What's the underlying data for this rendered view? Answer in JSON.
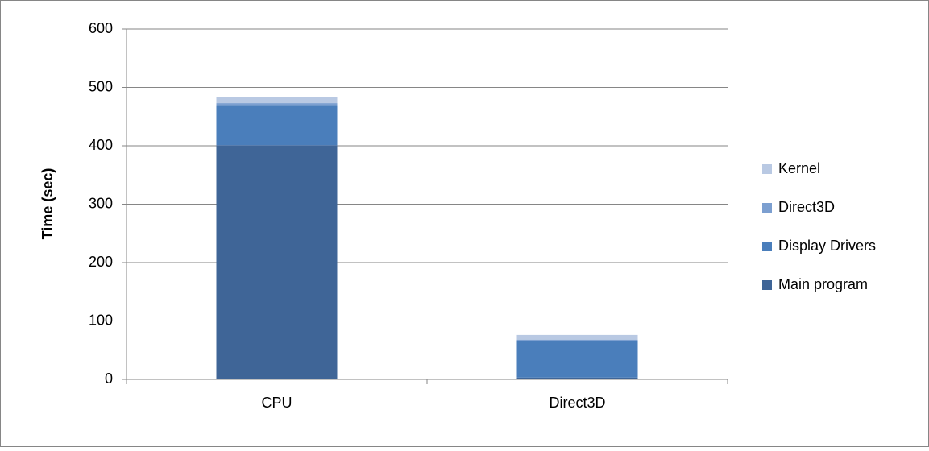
{
  "chart_data": {
    "type": "stacked_bar",
    "y_label": "Time (sec)",
    "categories": [
      "CPU",
      "Direct3D"
    ],
    "series": [
      {
        "name": "Main program",
        "color": "#3f6597",
        "values": [
          401,
          3
        ]
      },
      {
        "name": "Display Drivers",
        "color": "#4a7ebb",
        "values": [
          69,
          63
        ]
      },
      {
        "name": "Direct3D",
        "color": "#7c9fd0",
        "values": [
          3,
          2
        ]
      },
      {
        "name": "Kernel",
        "color": "#b9c9e3",
        "values": [
          11,
          8
        ]
      }
    ],
    "ylim": [
      0,
      600
    ],
    "yticks": [
      0,
      100,
      200,
      300,
      400,
      500,
      600
    ],
    "grid": true,
    "legend": "right"
  }
}
